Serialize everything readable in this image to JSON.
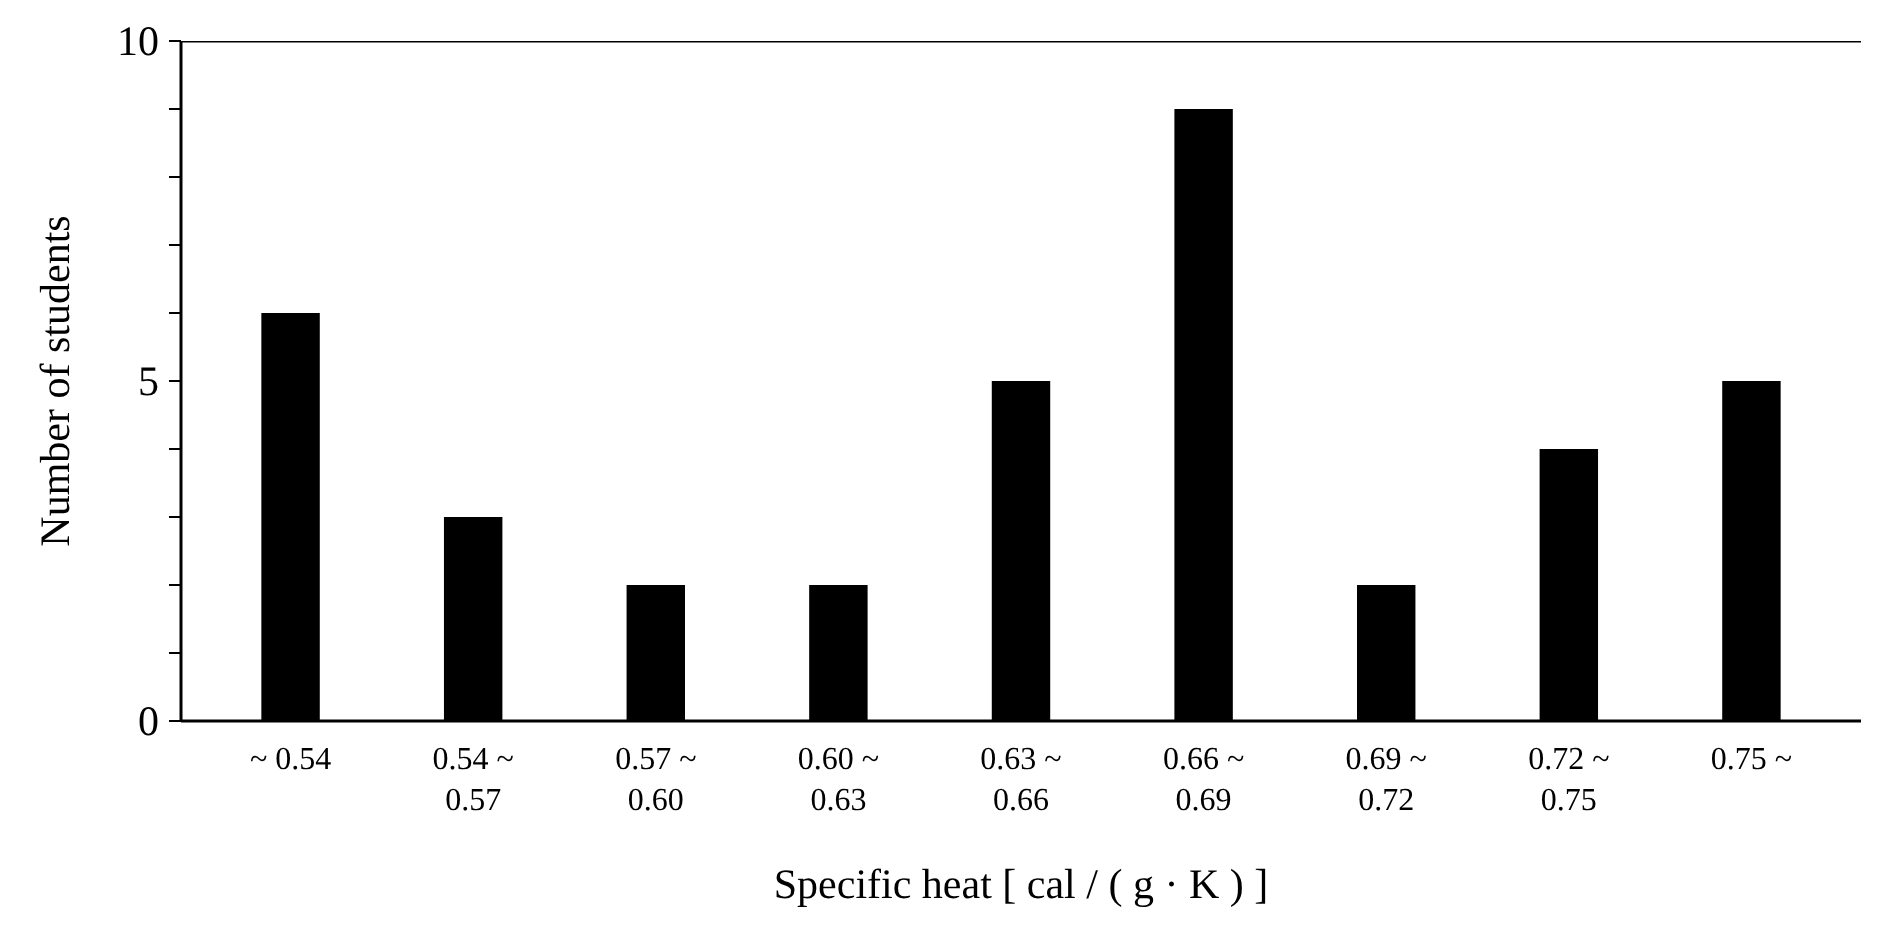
{
  "chart_data": {
    "type": "bar",
    "xlabel": "Specific heat [ cal / ( g · K ) ]",
    "ylabel": "Number of students",
    "categories": [
      "~ 0.54",
      "0.54 ~\n0.57",
      "0.57 ~\n0.60",
      "0.60 ~\n0.63",
      "0.63 ~\n0.66",
      "0.66 ~\n0.69",
      "0.69 ~\n0.72",
      "0.72 ~\n0.75",
      "0.75 ~"
    ],
    "values": [
      6,
      3,
      2,
      2,
      5,
      9,
      2,
      4,
      5
    ],
    "color": "#000000",
    "ylim": [
      0,
      10
    ],
    "yticks": [
      0,
      {
        "value": 1,
        "label": null
      },
      {
        "value": 2,
        "label": null
      },
      {
        "value": 3,
        "label": null
      },
      {
        "value": 4,
        "label": null
      },
      5,
      {
        "value": 6,
        "label": null
      },
      {
        "value": 7,
        "label": null
      },
      {
        "value": 8,
        "label": null
      },
      {
        "value": 9,
        "label": null
      },
      10
    ],
    "grid": false
  }
}
